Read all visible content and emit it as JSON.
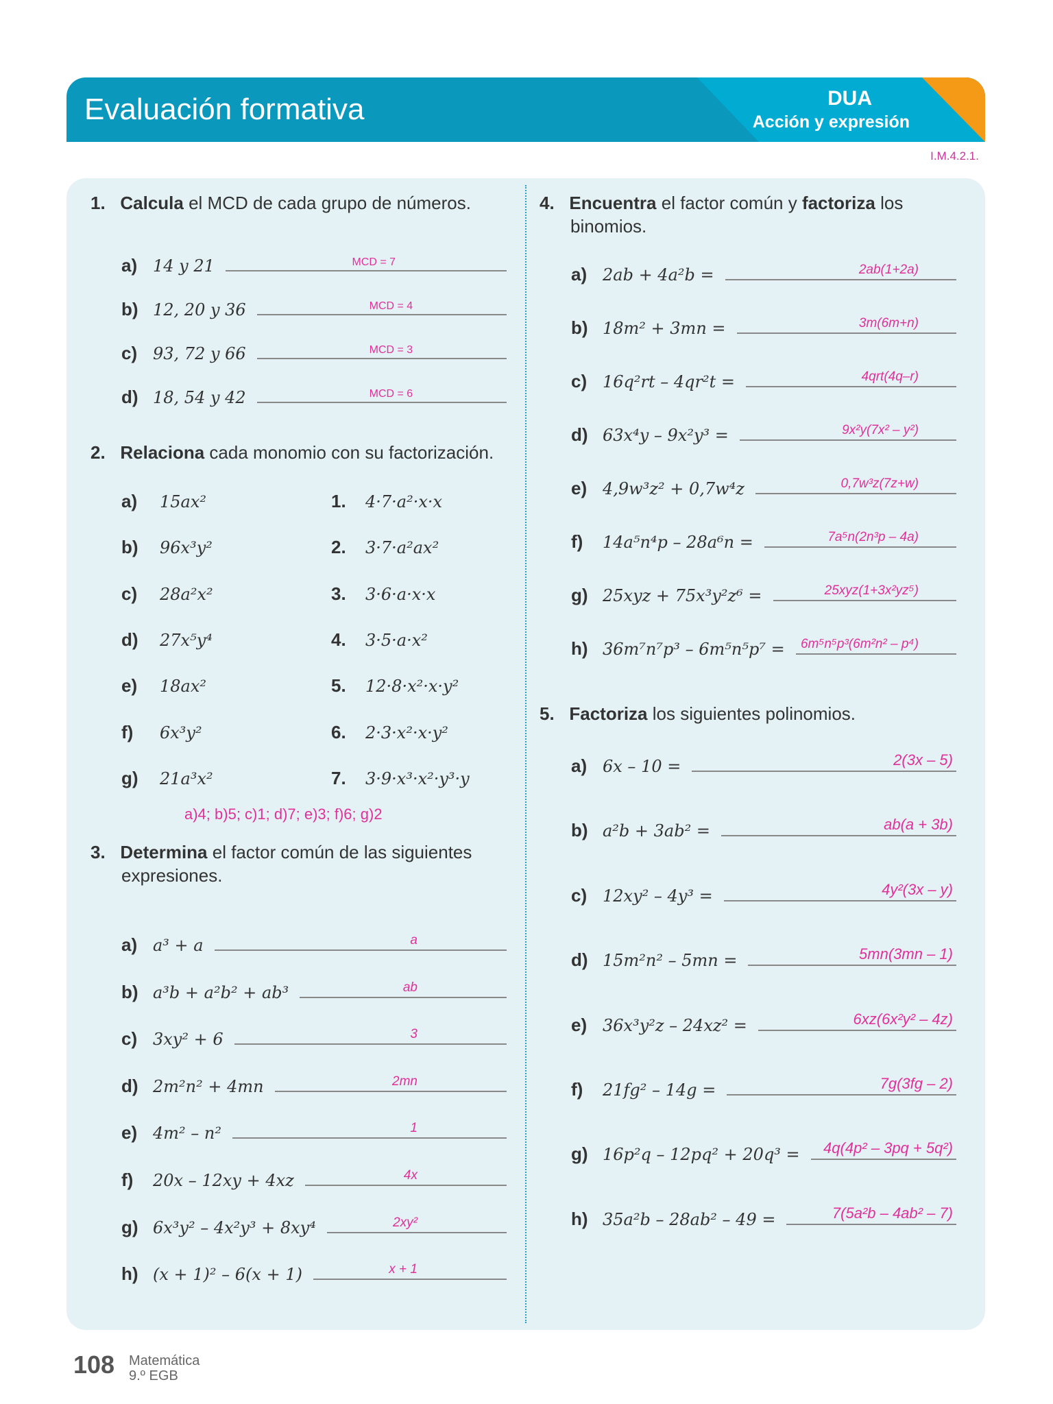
{
  "header": {
    "title": "Evaluación formativa",
    "dua": "DUA",
    "dua_sub": "Acción y expresión",
    "code": "I.M.4.2.1."
  },
  "q1": {
    "num": "1.",
    "bold": "Calcula",
    "rest": " el MCD de cada grupo de números.",
    "items": [
      {
        "l": "a)",
        "e": "14 y 21",
        "a": "MCD = 7"
      },
      {
        "l": "b)",
        "e": "12, 20 y 36",
        "a": "MCD = 4"
      },
      {
        "l": "c)",
        "e": "93, 72 y 66",
        "a": "MCD = 3"
      },
      {
        "l": "d)",
        "e": "18, 54 y 42",
        "a": "MCD = 6"
      }
    ]
  },
  "q2": {
    "num": "2.",
    "bold": "Relaciona",
    "rest": " cada monomio con su factorización.",
    "left": [
      {
        "l": "a)",
        "e": "15ax²"
      },
      {
        "l": "b)",
        "e": "96x³y²"
      },
      {
        "l": "c)",
        "e": "28a²x²"
      },
      {
        "l": "d)",
        "e": "27x⁵y⁴"
      },
      {
        "l": "e)",
        "e": "18ax²"
      },
      {
        "l": "f)",
        "e": "6x³y²"
      },
      {
        "l": "g)",
        "e": "21a³x²"
      }
    ],
    "right": [
      {
        "l": "1.",
        "e": "4·7·a²·x·x"
      },
      {
        "l": "2.",
        "e": "3·7·a²ax²"
      },
      {
        "l": "3.",
        "e": "3·6·a·x·x"
      },
      {
        "l": "4.",
        "e": "3·5·a·x²"
      },
      {
        "l": "5.",
        "e": "12·8·x²·x·y²"
      },
      {
        "l": "6.",
        "e": "2·3·x²·x·y²"
      },
      {
        "l": "7.",
        "e": "3·9·x³·x²·y³·y"
      }
    ],
    "answer": "a)4; b)5; c)1; d)7; e)3; f)6; g)2"
  },
  "q3": {
    "num": "3.",
    "bold": "Determina",
    "rest": " el factor común de las siguientes",
    "rest2": "expresiones.",
    "items": [
      {
        "l": "a)",
        "e": "a³ + a",
        "a": "a"
      },
      {
        "l": "b)",
        "e": "a³b + a²b² + ab³",
        "a": "ab"
      },
      {
        "l": "c)",
        "e": "3xy² + 6",
        "a": "3"
      },
      {
        "l": "d)",
        "e": "2m²n² + 4mn",
        "a": "2mn"
      },
      {
        "l": "e)",
        "e": "4m² – n²",
        "a": "1"
      },
      {
        "l": "f)",
        "e": "20x – 12xy + 4xz",
        "a": "4x"
      },
      {
        "l": "g)",
        "e": "6x³y² – 4x²y³ + 8xy⁴",
        "a": "2xy²"
      },
      {
        "l": "h)",
        "e": "(x + 1)² – 6(x + 1)",
        "a": "x + 1"
      }
    ]
  },
  "q4": {
    "num": "4.",
    "bold": "Encuentra",
    "mid": " el factor común y ",
    "bold2": "factoriza",
    "rest": " los",
    "rest2": "binomios.",
    "items": [
      {
        "l": "a)",
        "e": "2ab + 4a²b =",
        "a": "2ab(1+2a)"
      },
      {
        "l": "b)",
        "e": "18m² + 3mn =",
        "a": "3m(6m+n)"
      },
      {
        "l": "c)",
        "e": "16q²rt – 4qr²t =",
        "a": "4qrt(4q–r)"
      },
      {
        "l": "d)",
        "e": "63x⁴y – 9x²y³ =",
        "a": "9x²y(7x² – y²)"
      },
      {
        "l": "e)",
        "e": "4,9w³z² + 0,7w⁴z",
        "a": "0,7w³z(7z+w)"
      },
      {
        "l": "f)",
        "e": "14a⁵n⁴p – 28a⁶n =",
        "a": "7a⁵n(2n³p – 4a)"
      },
      {
        "l": "g)",
        "e": "25xyz + 75x³y²z⁶ =",
        "a": "25xyz(1+3x²yz⁵)"
      },
      {
        "l": "h)",
        "e": "36m⁷n⁷p³ – 6m⁵n⁵p⁷ =",
        "a": "6m⁵n⁵p³(6m²n² – p⁴)"
      }
    ]
  },
  "q5": {
    "num": "5.",
    "bold": "Factoriza",
    "rest": " los siguientes polinomios.",
    "items": [
      {
        "l": "a)",
        "e": "6x – 10 =",
        "a": "2(3x – 5)"
      },
      {
        "l": "b)",
        "e": "a²b + 3ab² =",
        "a": "ab(a + 3b)"
      },
      {
        "l": "c)",
        "e": "12xy² – 4y³ =",
        "a": "4y²(3x – y)"
      },
      {
        "l": "d)",
        "e": "15m²n² – 5mn =",
        "a": "5mn(3mn – 1)"
      },
      {
        "l": "e)",
        "e": "36x³y²z – 24xz² =",
        "a": "6xz(6x²y² – 4z)"
      },
      {
        "l": "f)",
        "e": "21fg² – 14g =",
        "a": "7g(3fg – 2)"
      },
      {
        "l": "g)",
        "e": "16p²q – 12pq² + 20q³ =",
        "a": "4q(4p² – 3pq + 5q²)"
      },
      {
        "l": "h)",
        "e": "35a²b – 28ab² – 49 =",
        "a": "7(5a²b – 4ab² – 7)"
      }
    ]
  },
  "footer": {
    "page": "108",
    "subject": "Matemática",
    "grade": "9.º EGB"
  }
}
